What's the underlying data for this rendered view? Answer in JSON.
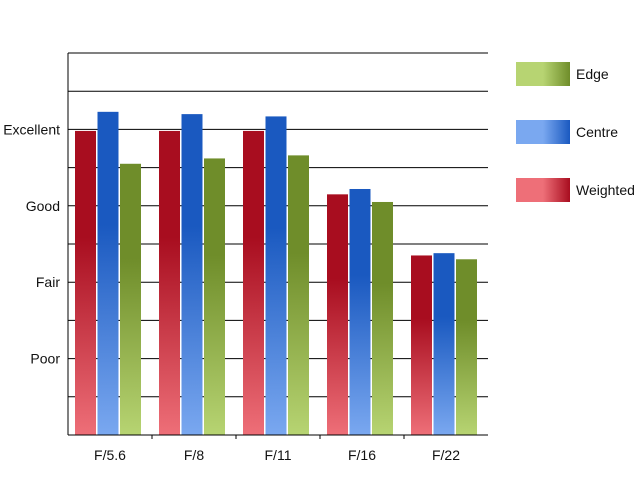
{
  "chart_data": {
    "type": "bar",
    "categories": [
      "F/5.6",
      "F/8",
      "F/11",
      "F/16",
      "F/22"
    ],
    "series": [
      {
        "name": "Weighted",
        "values": [
          3.98,
          3.98,
          3.98,
          3.15,
          2.35
        ],
        "color_top": "#a80d1f",
        "color_bottom": "#ee6f78"
      },
      {
        "name": "Centre",
        "values": [
          4.23,
          4.2,
          4.17,
          3.22,
          2.38
        ],
        "color_top": "#1a59c0",
        "color_bottom": "#7aa8f0"
      },
      {
        "name": "Edge",
        "values": [
          3.55,
          3.62,
          3.66,
          3.05,
          2.3
        ],
        "color_top": "#6f8d2a",
        "color_bottom": "#b7d472"
      }
    ],
    "yticks": [
      {
        "value": 1,
        "label": "Poor"
      },
      {
        "value": 2,
        "label": "Fair"
      },
      {
        "value": 3,
        "label": "Good"
      },
      {
        "value": 4,
        "label": "Excellent"
      }
    ],
    "ylim": [
      0,
      5
    ],
    "gridlines": [
      0.5,
      1,
      1.5,
      2,
      2.5,
      3,
      3.5,
      4,
      4.5,
      5
    ],
    "legend_order": [
      "Edge",
      "Centre",
      "Weighted"
    ],
    "legend_position": "right",
    "title": "",
    "xlabel": "",
    "ylabel": ""
  }
}
